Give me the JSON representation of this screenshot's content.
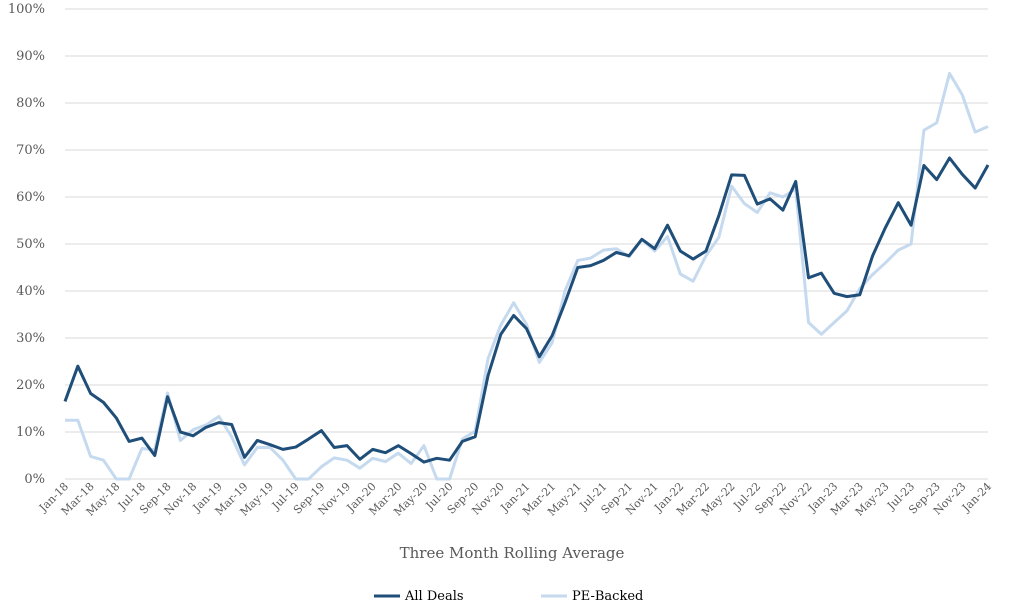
{
  "chart_data": {
    "type": "line",
    "title": "",
    "xlabel": "Three Month Rolling Average",
    "ylabel": "",
    "ylim": [
      0,
      100
    ],
    "yticks": [
      "0%",
      "10%",
      "20%",
      "30%",
      "40%",
      "50%",
      "60%",
      "70%",
      "80%",
      "90%",
      "100%"
    ],
    "grid": true,
    "legend": "bottom",
    "x": [
      "Jan-18",
      "Feb-18",
      "Mar-18",
      "Apr-18",
      "May-18",
      "Jun-18",
      "Jul-18",
      "Aug-18",
      "Sep-18",
      "Oct-18",
      "Nov-18",
      "Dec-18",
      "Jan-19",
      "Feb-19",
      "Mar-19",
      "Apr-19",
      "May-19",
      "Jun-19",
      "Jul-19",
      "Aug-19",
      "Sep-19",
      "Oct-19",
      "Nov-19",
      "Dec-19",
      "Jan-20",
      "Feb-20",
      "Mar-20",
      "Apr-20",
      "May-20",
      "Jun-20",
      "Jul-20",
      "Aug-20",
      "Sep-20",
      "Oct-20",
      "Nov-20",
      "Dec-20",
      "Jan-21",
      "Feb-21",
      "Mar-21",
      "Apr-21",
      "May-21",
      "Jun-21",
      "Jul-21",
      "Aug-21",
      "Sep-21",
      "Oct-21",
      "Nov-21",
      "Dec-21",
      "Jan-22",
      "Feb-22",
      "Mar-22",
      "Apr-22",
      "May-22",
      "Jun-22",
      "Jul-22",
      "Aug-22",
      "Sep-22",
      "Oct-22",
      "Nov-22",
      "Dec-22",
      "Jan-23",
      "Feb-23",
      "Mar-23",
      "Apr-23",
      "May-23",
      "Jun-23",
      "Jul-23",
      "Aug-23",
      "Sep-23",
      "Oct-23",
      "Nov-23",
      "Dec-23",
      "Jan-24"
    ],
    "tick_labels": [
      "Jan-18",
      "Mar-18",
      "May-18",
      "Jul-18",
      "Sep-18",
      "Nov-18",
      "Jan-19",
      "Mar-19",
      "May-19",
      "Jul-19",
      "Sep-19",
      "Nov-19",
      "Jan-20",
      "Mar-20",
      "May-20",
      "Jul-20",
      "Sep-20",
      "Nov-20",
      "Jan-21",
      "Mar-21",
      "May-21",
      "Jul-21",
      "Sep-21",
      "Nov-21",
      "Jan-22",
      "Mar-22",
      "May-22",
      "Jul-22",
      "Sep-22",
      "Nov-22",
      "Jan-23",
      "Mar-23",
      "May-23",
      "Jul-23",
      "Sep-23",
      "Nov-23",
      "Jan-24"
    ],
    "series": [
      {
        "name": "All Deals",
        "color": "#1f4e79",
        "values": [
          16.5,
          24,
          18.2,
          16.3,
          13,
          8,
          8.7,
          5,
          17.5,
          10,
          9.2,
          11,
          12,
          11.6,
          4.6,
          8.2,
          7.3,
          6.3,
          6.8,
          8.5,
          10.3,
          6.7,
          7.1,
          4.2,
          6.3,
          5.6,
          7.1,
          5.4,
          3.6,
          4.4,
          4,
          8,
          9,
          22,
          30.8,
          34.8,
          32,
          26,
          30.5,
          37.5,
          45,
          45.4,
          46.5,
          48.2,
          47.5,
          51,
          49,
          54,
          48.5,
          46.8,
          48.5,
          56,
          64.7,
          64.6,
          58.5,
          59.6,
          57.2,
          63.3,
          42.8,
          43.8,
          39.5,
          38.8,
          39.2,
          47.5,
          53.5,
          58.8,
          54,
          66.7,
          63.7,
          68.3,
          64.8,
          61.9,
          66.8
        ]
      },
      {
        "name": "PE-Backed",
        "color": "#c5d9ef",
        "values": [
          12.5,
          12.5,
          4.8,
          4,
          0,
          0,
          6.5,
          6.2,
          18.3,
          8.2,
          10.5,
          11.5,
          13.3,
          9,
          3,
          6.7,
          6.7,
          4,
          0,
          0,
          2.6,
          4.5,
          4,
          2.3,
          4.4,
          3.7,
          5.5,
          3.3,
          7.1,
          0,
          0,
          8.5,
          10.2,
          25.6,
          32.8,
          37.5,
          32.9,
          24.8,
          29,
          40,
          46.5,
          47,
          48.7,
          49,
          47.3,
          51,
          48.5,
          51.6,
          43.6,
          42.1,
          47.5,
          51.4,
          62.3,
          58.6,
          56.7,
          60.9,
          60,
          61.7,
          33.3,
          30.8,
          33.3,
          35.8,
          40.5,
          43.5,
          46,
          48.7,
          50,
          74.2,
          75.8,
          86.3,
          81.7,
          73.8,
          75
        ]
      }
    ]
  }
}
